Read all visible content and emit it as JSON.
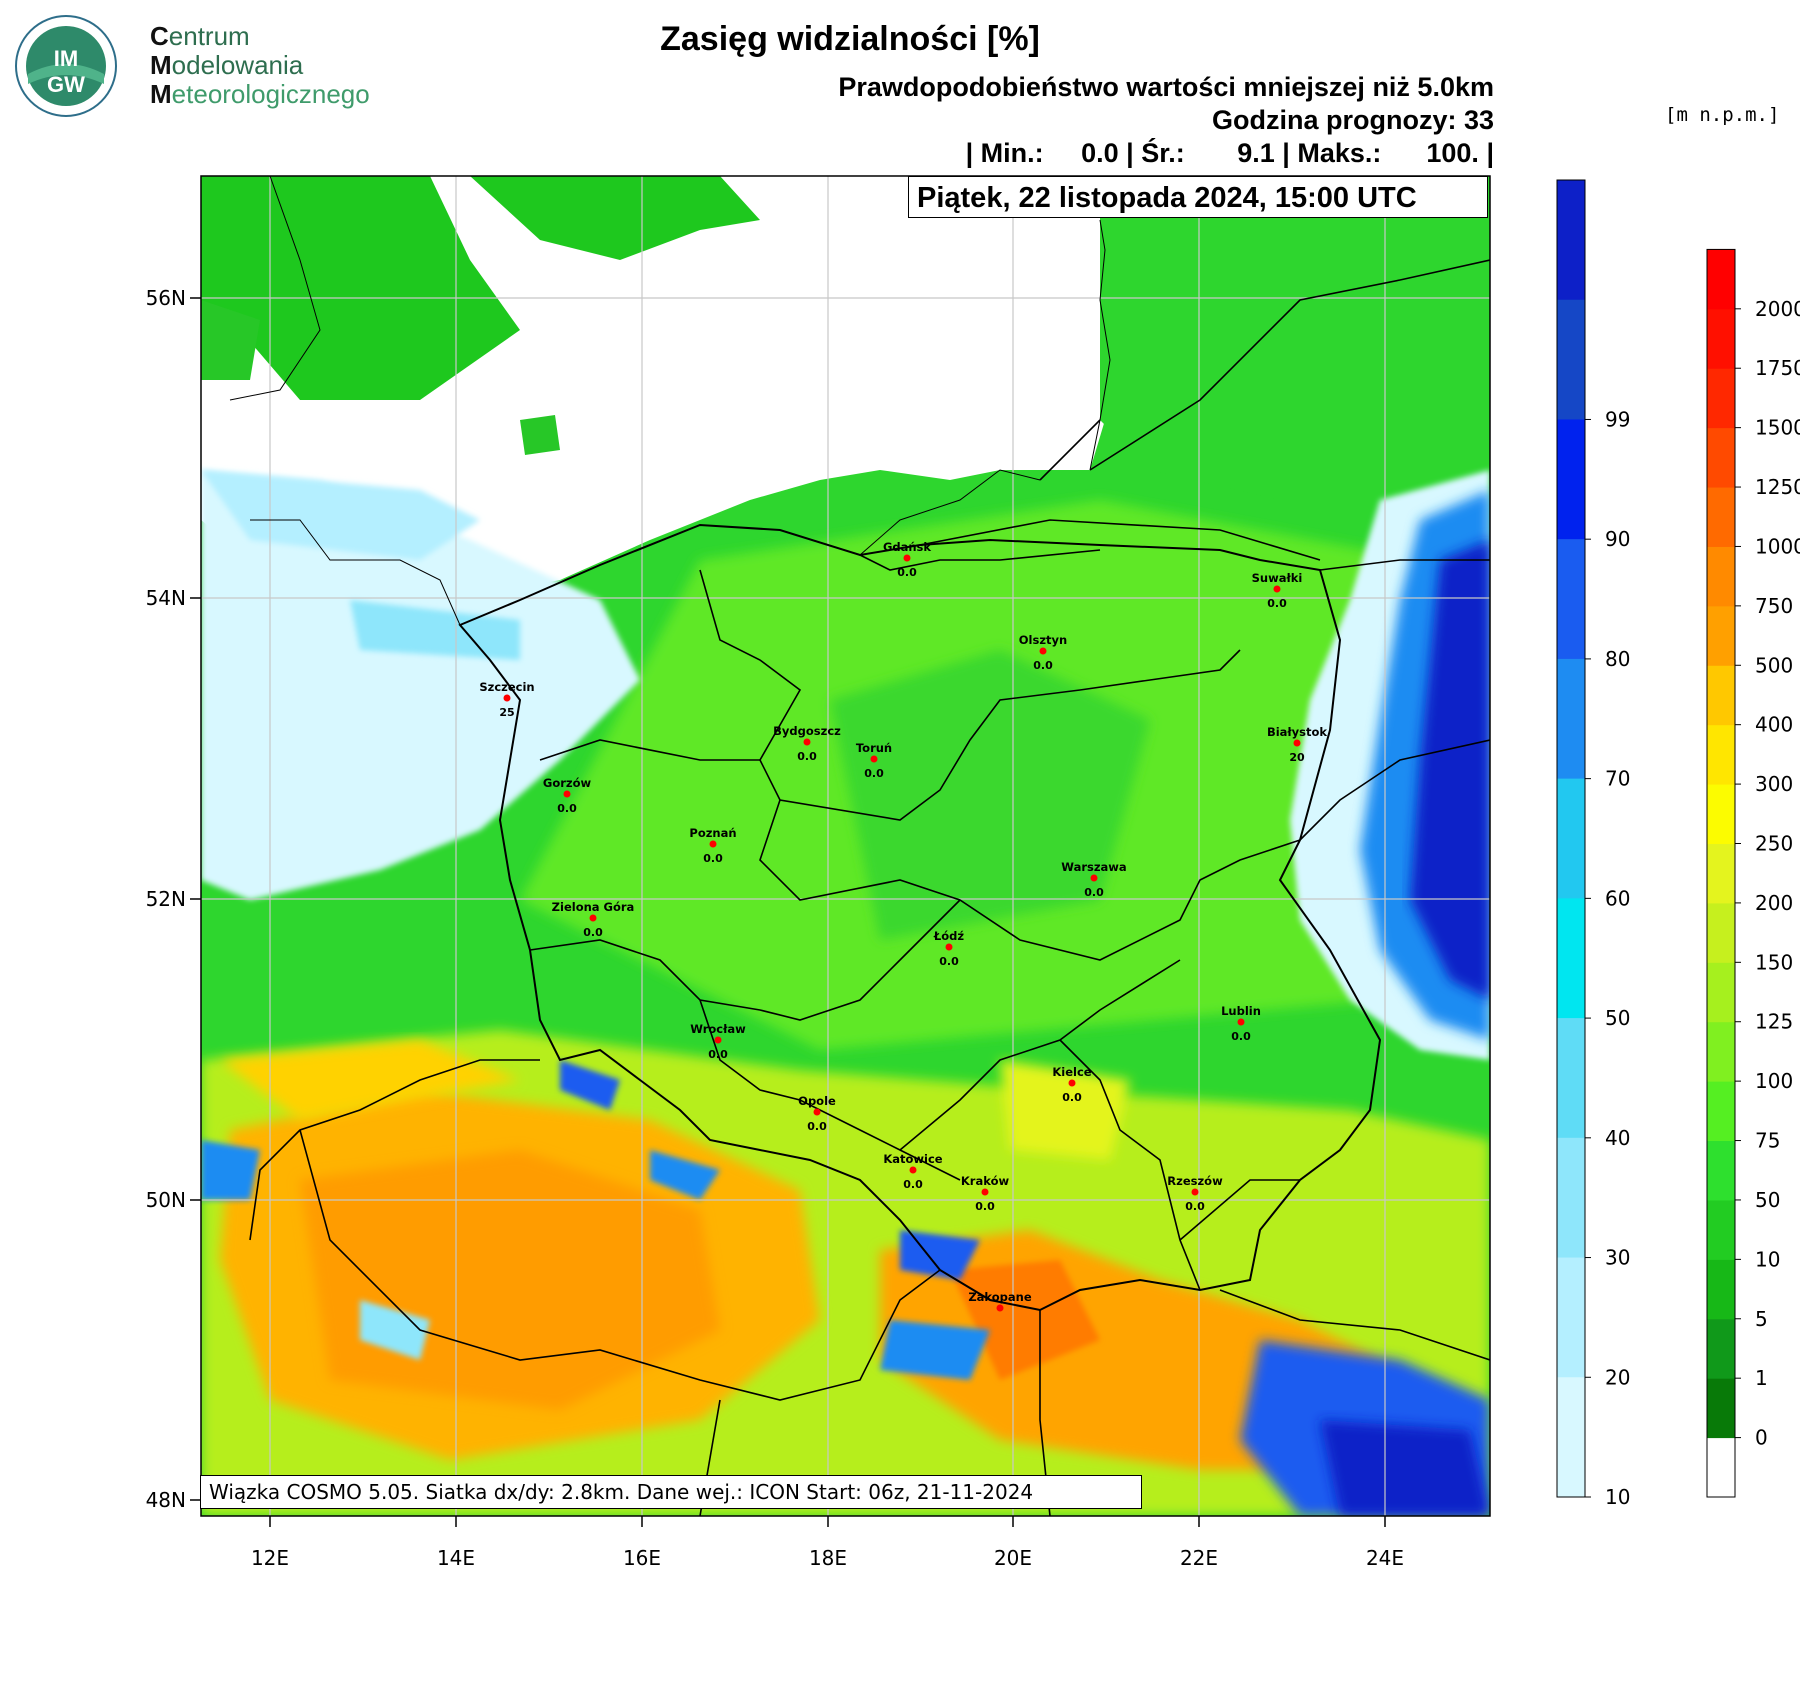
{
  "logo": {
    "badge_text_top": "IM",
    "badge_text_bottom": "GW",
    "org_line1_initial": "C",
    "org_line1_rest": "entrum",
    "org_line2_initial": "M",
    "org_line2_rest": "odelowania",
    "org_line3_initial": "M",
    "org_line3_rest": "eteorologicznego"
  },
  "header": {
    "title": "Zasięg widzialności [%]",
    "subtitle": "Prawdopodobieństwo wartości mniejszej niż 5.0km",
    "forecast_hour": "Godzina prognozy: 33",
    "stats": "| Min.:     0.0 | Śr.:       9.1 | Maks.:      100. |",
    "date": "Piątek, 22 listopada 2024, 15:00 UTC",
    "elevation_unit": "[m n.p.m.]"
  },
  "model_info": "Wiązka COSMO 5.05. Siatka dx/dy: 2.8km. Dane wej.: ICON Start: 06z, 21-11-2024",
  "map": {
    "lat_labels": [
      "56N",
      "54N",
      "52N",
      "50N",
      "48N"
    ],
    "lon_labels": [
      "12E",
      "14E",
      "16E",
      "18E",
      "20E",
      "22E",
      "24E"
    ],
    "cities": [
      {
        "name": "Gdańsk",
        "value": "0.0"
      },
      {
        "name": "Suwałki",
        "value": "0.0"
      },
      {
        "name": "Olsztyn",
        "value": "0.0"
      },
      {
        "name": "Szczecin",
        "value": "25"
      },
      {
        "name": "Bydgoszcz",
        "value": "0.0"
      },
      {
        "name": "Toruń",
        "value": "0.0"
      },
      {
        "name": "Białystok",
        "value": "20"
      },
      {
        "name": "Gorzów",
        "value": "0.0"
      },
      {
        "name": "Poznań",
        "value": "0.0"
      },
      {
        "name": "Warszawa",
        "value": "0.0"
      },
      {
        "name": "Zielona Góra",
        "value": "0.0"
      },
      {
        "name": "Łódź",
        "value": "0.0"
      },
      {
        "name": "Lublin",
        "value": "0.0"
      },
      {
        "name": "Wrocław",
        "value": "0.0"
      },
      {
        "name": "Kielce",
        "value": "0.0"
      },
      {
        "name": "Opole",
        "value": "0.0"
      },
      {
        "name": "Katowice",
        "value": "0.0"
      },
      {
        "name": "Kraków",
        "value": "0.0"
      },
      {
        "name": "Rzeszów",
        "value": "0.0"
      },
      {
        "name": "Zakopane",
        "value": ""
      }
    ]
  },
  "probability_colorbar": {
    "labels": [
      "10",
      "20",
      "30",
      "40",
      "50",
      "60",
      "70",
      "80",
      "90",
      "99"
    ],
    "colors": [
      "#d8f8ff",
      "#b4efff",
      "#8ee6fb",
      "#5fdcf6",
      "#00e6f0",
      "#22c8f0",
      "#1e8cf2",
      "#1a5cf0",
      "#0022ee",
      "#1547c6",
      "#0d20c8"
    ]
  },
  "elevation_colorbar": {
    "labels": [
      "0",
      "1",
      "5",
      "10",
      "50",
      "75",
      "100",
      "125",
      "150",
      "200",
      "250",
      "300",
      "400",
      "500",
      "750",
      "1000",
      "1250",
      "1500",
      "1750",
      "2000"
    ],
    "colors": [
      "#ffffff",
      "#087a08",
      "#10991a",
      "#17b817",
      "#22cc22",
      "#2ee02e",
      "#55ef22",
      "#80f020",
      "#a6f01e",
      "#c6f01e",
      "#e4f41e",
      "#fcfc00",
      "#ffe600",
      "#ffc800",
      "#ffa000",
      "#ff8a00",
      "#ff6a00",
      "#ff4a00",
      "#ff2800",
      "#ff1000",
      "#ff0000"
    ]
  }
}
